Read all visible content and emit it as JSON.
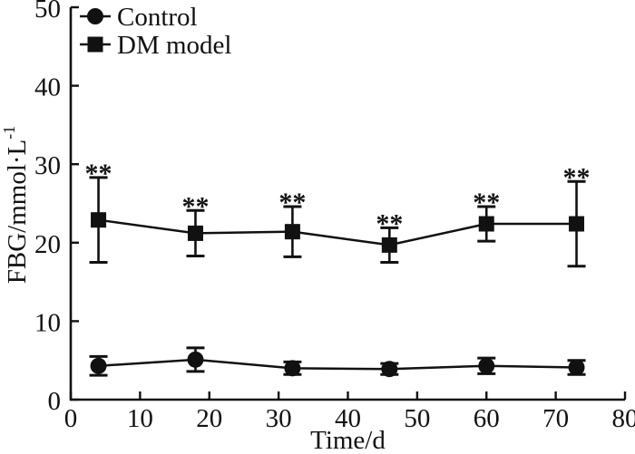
{
  "figure": {
    "background_color": "#ffffff",
    "ink_color": "#111111"
  },
  "chart_data": {
    "type": "line",
    "title": "",
    "xlabel": "Time/d",
    "ylabel": "FBG/mmol·L⁻¹",
    "ylabel_main": "FBG/mmol·L",
    "ylabel_superscript": "-1",
    "xlim": [
      0,
      80
    ],
    "ylim": [
      0,
      50
    ],
    "x_ticks": [
      0,
      10,
      20,
      30,
      40,
      50,
      60,
      70,
      80
    ],
    "y_ticks": [
      0,
      10,
      20,
      30,
      40,
      50
    ],
    "grid": false,
    "legend_position": "top-left-inside",
    "x": [
      4,
      18,
      32,
      46,
      60,
      73
    ],
    "series": [
      {
        "name": "Control",
        "marker": "circle",
        "color": "#111111",
        "values": [
          4.3,
          5.1,
          4.0,
          3.9,
          4.3,
          4.1
        ],
        "errors": [
          1.2,
          1.5,
          0.8,
          0.7,
          1.0,
          0.9
        ],
        "annotations": [
          "",
          "",
          "",
          "",
          "",
          ""
        ]
      },
      {
        "name": "DM model",
        "marker": "square",
        "color": "#111111",
        "values": [
          22.9,
          21.2,
          21.4,
          19.7,
          22.4,
          22.4
        ],
        "errors": [
          5.4,
          2.9,
          3.2,
          2.2,
          2.2,
          5.4
        ],
        "annotations": [
          "**",
          "**",
          "**",
          "**",
          "**",
          "**"
        ]
      }
    ]
  }
}
